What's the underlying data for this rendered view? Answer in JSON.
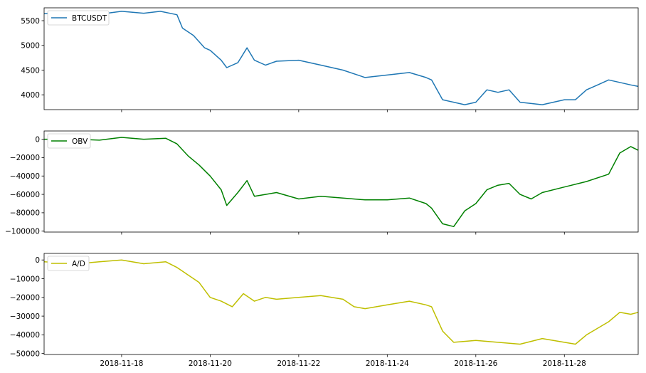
{
  "chart_data": [
    {
      "type": "line",
      "title": "",
      "xlabel": "",
      "ylabel": "",
      "xlim": [
        "2018-11-16 06:00",
        "2018-11-29 16:00"
      ],
      "ylim": [
        3700,
        5760
      ],
      "yticks": [
        4000,
        4500,
        5000,
        5500
      ],
      "ytick_labels": [
        "4000",
        "4500",
        "5000",
        "5500"
      ],
      "grid": false,
      "legend_position": "top-left",
      "series": [
        {
          "name": "BTCUSDT",
          "color": "#1f77b4",
          "x": [
            "2018-11-16 06:00",
            "2018-11-16 12:00",
            "2018-11-17 00:00",
            "2018-11-17 12:00",
            "2018-11-18 00:00",
            "2018-11-18 12:00",
            "2018-11-18 21:00",
            "2018-11-19 06:00",
            "2018-11-19 09:00",
            "2018-11-19 15:00",
            "2018-11-19 21:00",
            "2018-11-20 00:00",
            "2018-11-20 06:00",
            "2018-11-20 09:00",
            "2018-11-20 15:00",
            "2018-11-20 20:00",
            "2018-11-21 00:00",
            "2018-11-21 06:00",
            "2018-11-21 12:00",
            "2018-11-22 00:00",
            "2018-11-22 12:00",
            "2018-11-23 00:00",
            "2018-11-23 12:00",
            "2018-11-24 00:00",
            "2018-11-24 12:00",
            "2018-11-24 21:00",
            "2018-11-25 00:00",
            "2018-11-25 06:00",
            "2018-11-25 12:00",
            "2018-11-25 18:00",
            "2018-11-26 00:00",
            "2018-11-26 06:00",
            "2018-11-26 12:00",
            "2018-11-26 18:00",
            "2018-11-27 00:00",
            "2018-11-27 12:00",
            "2018-11-28 00:00",
            "2018-11-28 06:00",
            "2018-11-28 12:00",
            "2018-11-28 18:00",
            "2018-11-29 00:00",
            "2018-11-29 06:00",
            "2018-11-29 12:00",
            "2018-11-29 16:00"
          ],
          "values": [
            5640,
            5650,
            5620,
            5630,
            5690,
            5650,
            5690,
            5620,
            5350,
            5200,
            4950,
            4900,
            4700,
            4550,
            4650,
            4950,
            4700,
            4600,
            4680,
            4700,
            4600,
            4500,
            4350,
            4400,
            4450,
            4350,
            4300,
            3900,
            3850,
            3800,
            3850,
            4100,
            4050,
            4100,
            3850,
            3800,
            3900,
            3900,
            4100,
            4200,
            4300,
            4250,
            4200,
            4170
          ]
        }
      ]
    },
    {
      "type": "line",
      "title": "",
      "xlabel": "",
      "ylabel": "",
      "xlim": [
        "2018-11-16 06:00",
        "2018-11-29 16:00"
      ],
      "ylim": [
        -101000,
        9000
      ],
      "yticks": [
        -100000,
        -80000,
        -60000,
        -40000,
        -20000,
        0
      ],
      "ytick_labels": [
        "−100000",
        "−80000",
        "−60000",
        "−40000",
        "−20000",
        "0"
      ],
      "grid": false,
      "legend_position": "top-left",
      "series": [
        {
          "name": "OBV",
          "color": "#008000",
          "x": [
            "2018-11-16 06:00",
            "2018-11-17 00:00",
            "2018-11-17 12:00",
            "2018-11-18 00:00",
            "2018-11-18 12:00",
            "2018-11-19 00:00",
            "2018-11-19 06:00",
            "2018-11-19 12:00",
            "2018-11-19 18:00",
            "2018-11-20 00:00",
            "2018-11-20 06:00",
            "2018-11-20 09:00",
            "2018-11-20 15:00",
            "2018-11-20 20:00",
            "2018-11-21 00:00",
            "2018-11-21 06:00",
            "2018-11-21 12:00",
            "2018-11-22 00:00",
            "2018-11-22 12:00",
            "2018-11-23 00:00",
            "2018-11-23 12:00",
            "2018-11-24 00:00",
            "2018-11-24 12:00",
            "2018-11-24 21:00",
            "2018-11-25 00:00",
            "2018-11-25 06:00",
            "2018-11-25 12:00",
            "2018-11-25 18:00",
            "2018-11-26 00:00",
            "2018-11-26 06:00",
            "2018-11-26 12:00",
            "2018-11-26 18:00",
            "2018-11-27 00:00",
            "2018-11-27 06:00",
            "2018-11-27 12:00",
            "2018-11-28 00:00",
            "2018-11-28 12:00",
            "2018-11-29 00:00",
            "2018-11-29 06:00",
            "2018-11-29 12:00",
            "2018-11-29 16:00"
          ],
          "values": [
            0,
            0,
            -1000,
            2000,
            0,
            1000,
            -5000,
            -18000,
            -28000,
            -40000,
            -55000,
            -72000,
            -58000,
            -45000,
            -62000,
            -60000,
            -58000,
            -65000,
            -62000,
            -64000,
            -66000,
            -66000,
            -64000,
            -70000,
            -75000,
            -92000,
            -95000,
            -78000,
            -70000,
            -55000,
            -50000,
            -48000,
            -60000,
            -65000,
            -58000,
            -52000,
            -46000,
            -38000,
            -15000,
            -8000,
            -12000
          ]
        }
      ]
    },
    {
      "type": "line",
      "title": "",
      "xlabel": "",
      "ylabel": "",
      "xlim": [
        "2018-11-16 06:00",
        "2018-11-29 16:00"
      ],
      "ylim": [
        -50500,
        3500
      ],
      "yticks": [
        -50000,
        -40000,
        -30000,
        -20000,
        -10000,
        0
      ],
      "ytick_labels": [
        "−50000",
        "−40000",
        "−30000",
        "−20000",
        "−10000",
        "0"
      ],
      "xticks": [
        "2018-11-18",
        "2018-11-20",
        "2018-11-22",
        "2018-11-24",
        "2018-11-26",
        "2018-11-28"
      ],
      "grid": false,
      "legend_position": "top-left",
      "series": [
        {
          "name": "A/D",
          "color": "#bfbf00",
          "x": [
            "2018-11-16 06:00",
            "2018-11-17 00:00",
            "2018-11-17 12:00",
            "2018-11-18 00:00",
            "2018-11-18 12:00",
            "2018-11-19 00:00",
            "2018-11-19 06:00",
            "2018-11-19 12:00",
            "2018-11-19 18:00",
            "2018-11-20 00:00",
            "2018-11-20 06:00",
            "2018-11-20 12:00",
            "2018-11-20 18:00",
            "2018-11-21 00:00",
            "2018-11-21 06:00",
            "2018-11-21 12:00",
            "2018-11-22 00:00",
            "2018-11-22 12:00",
            "2018-11-23 00:00",
            "2018-11-23 06:00",
            "2018-11-23 12:00",
            "2018-11-24 00:00",
            "2018-11-24 12:00",
            "2018-11-24 21:00",
            "2018-11-25 00:00",
            "2018-11-25 06:00",
            "2018-11-25 12:00",
            "2018-11-26 00:00",
            "2018-11-26 12:00",
            "2018-11-27 00:00",
            "2018-11-27 12:00",
            "2018-11-28 00:00",
            "2018-11-28 06:00",
            "2018-11-28 12:00",
            "2018-11-29 00:00",
            "2018-11-29 06:00",
            "2018-11-29 12:00",
            "2018-11-29 16:00"
          ],
          "values": [
            -1000,
            -2000,
            -1000,
            0,
            -2000,
            -1000,
            -4000,
            -8000,
            -12000,
            -20000,
            -22000,
            -25000,
            -18000,
            -22000,
            -20000,
            -21000,
            -20000,
            -19000,
            -21000,
            -25000,
            -26000,
            -24000,
            -22000,
            -24000,
            -25000,
            -38000,
            -44000,
            -43000,
            -44000,
            -45000,
            -42000,
            -44000,
            -45000,
            -40000,
            -33000,
            -28000,
            -29000,
            -28000
          ]
        }
      ]
    }
  ]
}
